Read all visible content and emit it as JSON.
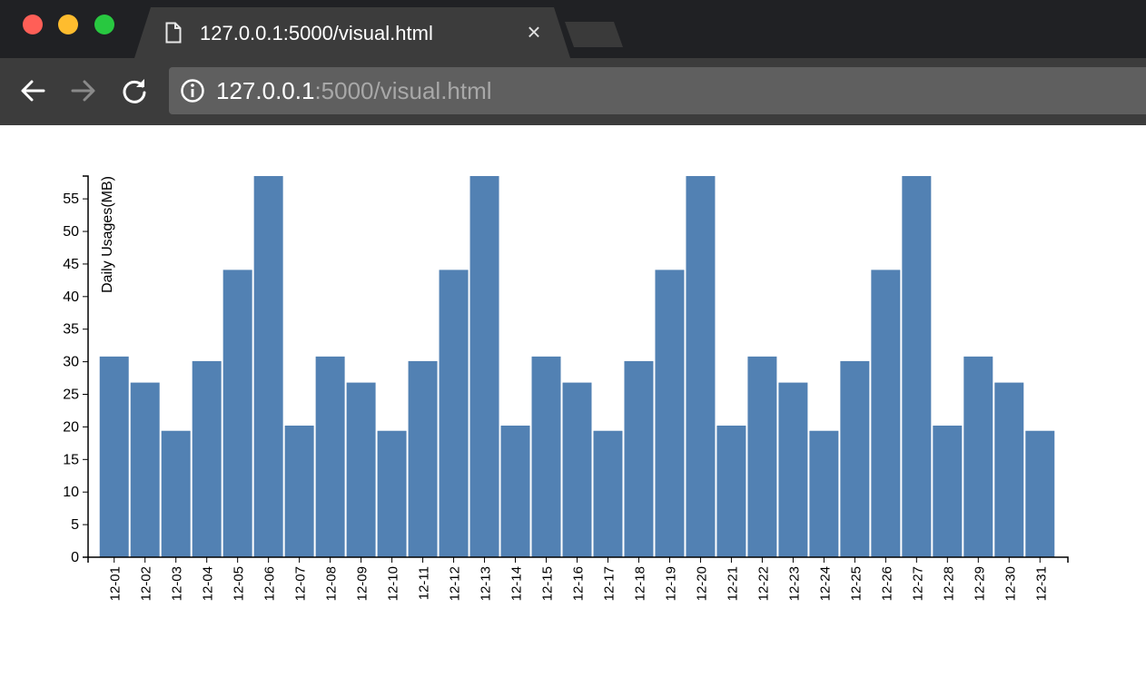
{
  "browser": {
    "tab_title": "127.0.0.1:5000/visual.html",
    "close_tab_glyph": "×",
    "url_host": "127.0.0.1",
    "url_rest": ":5000/visual.html",
    "icons": {
      "tab": "document-icon",
      "back": "back-arrow-icon",
      "forward": "forward-arrow-icon",
      "reload": "reload-icon",
      "info": "info-icon"
    }
  },
  "chart_data": {
    "type": "bar",
    "ylabel": "Daily Usages(MB)",
    "xlabel": "",
    "ylim": [
      0,
      58.5
    ],
    "yticks": [
      0,
      5,
      10,
      15,
      20,
      25,
      30,
      35,
      40,
      45,
      50,
      55
    ],
    "bar_color": "#5281b3",
    "categories": [
      "12-01",
      "12-02",
      "12-03",
      "12-04",
      "12-05",
      "12-06",
      "12-07",
      "12-08",
      "12-09",
      "12-10",
      "12-11",
      "12-12",
      "12-13",
      "12-14",
      "12-15",
      "12-16",
      "12-17",
      "12-18",
      "12-19",
      "12-20",
      "12-21",
      "12-22",
      "12-23",
      "12-24",
      "12-25",
      "12-26",
      "12-27",
      "12-28",
      "12-29",
      "12-30",
      "12-31"
    ],
    "values": [
      30.8,
      26.8,
      19.4,
      30.1,
      44.1,
      58.5,
      20.2,
      30.8,
      26.8,
      19.4,
      30.1,
      44.1,
      58.5,
      20.2,
      30.8,
      26.8,
      19.4,
      30.1,
      44.1,
      58.5,
      20.2,
      30.8,
      26.8,
      19.4,
      30.1,
      44.1,
      58.5,
      20.2,
      30.8,
      26.8,
      19.4
    ]
  }
}
